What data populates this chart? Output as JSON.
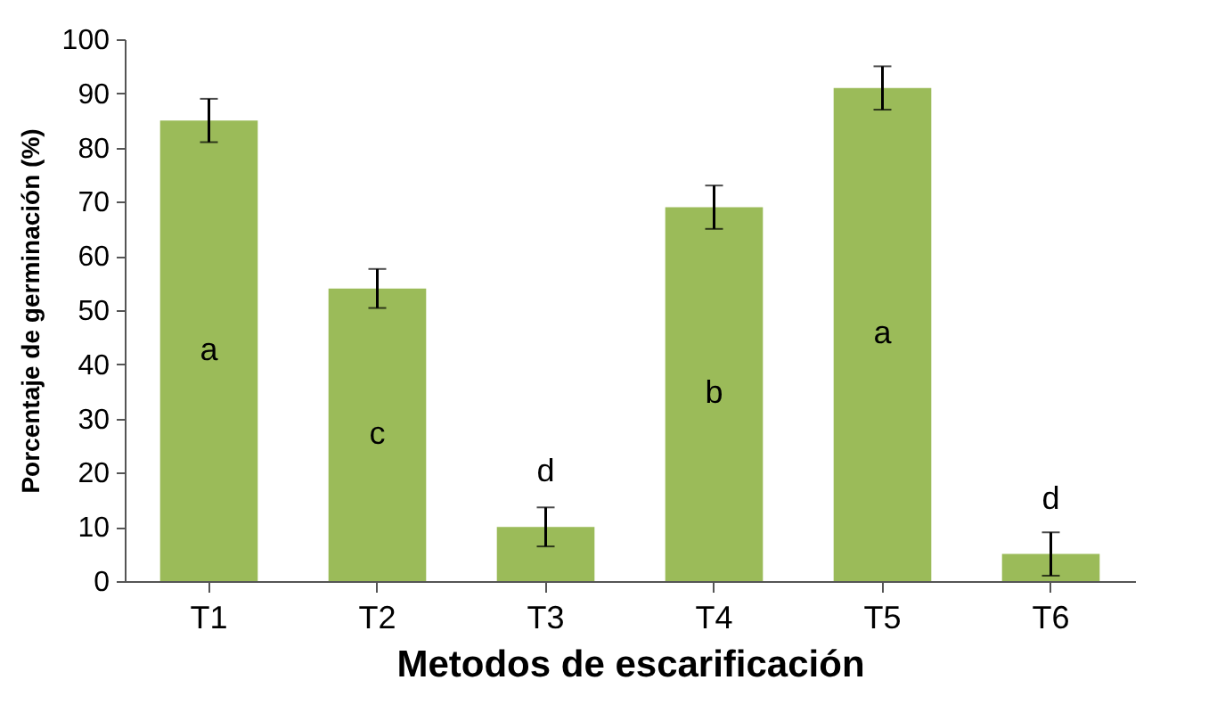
{
  "chart_data": {
    "type": "bar",
    "xlabel": "Metodos de escarificación",
    "ylabel": "Porcentaje de germinación (%)",
    "categories": [
      "T1",
      "T2",
      "T3",
      "T4",
      "T5",
      "T6"
    ],
    "values": [
      85,
      54,
      10,
      69,
      91,
      5
    ],
    "errors": [
      4,
      3.6,
      3.6,
      4,
      4,
      4
    ],
    "color": "#9bbb59",
    "ylim": [
      0,
      100
    ],
    "yticks": [
      0,
      10,
      20,
      30,
      40,
      50,
      60,
      70,
      80,
      90,
      100
    ],
    "annotations": [
      "a",
      "c",
      "d",
      "b",
      "a",
      "d"
    ]
  }
}
